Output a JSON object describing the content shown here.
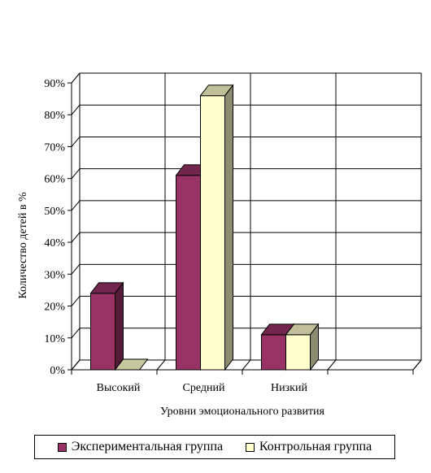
{
  "chart_data": {
    "type": "bar",
    "subtype": "3d-clustered-column",
    "categories": [
      "Высокий",
      "Средний",
      "Низкий"
    ],
    "series": [
      {
        "name": "Экспериментальная группа",
        "values": [
          24,
          61,
          11
        ],
        "color": "#993366"
      },
      {
        "name": "Контрольная группа",
        "values": [
          0,
          86,
          11
        ],
        "color": "#FFFFCC"
      }
    ],
    "xlabel": "Уровни эмоционального развития",
    "ylabel": "Количество детей в %",
    "ylim": [
      0,
      90
    ],
    "yticks": [
      "0%",
      "10%",
      "20%",
      "30%",
      "40%",
      "50%",
      "60%",
      "70%",
      "80%",
      "90%"
    ],
    "grid": true,
    "legend_position": "bottom"
  }
}
